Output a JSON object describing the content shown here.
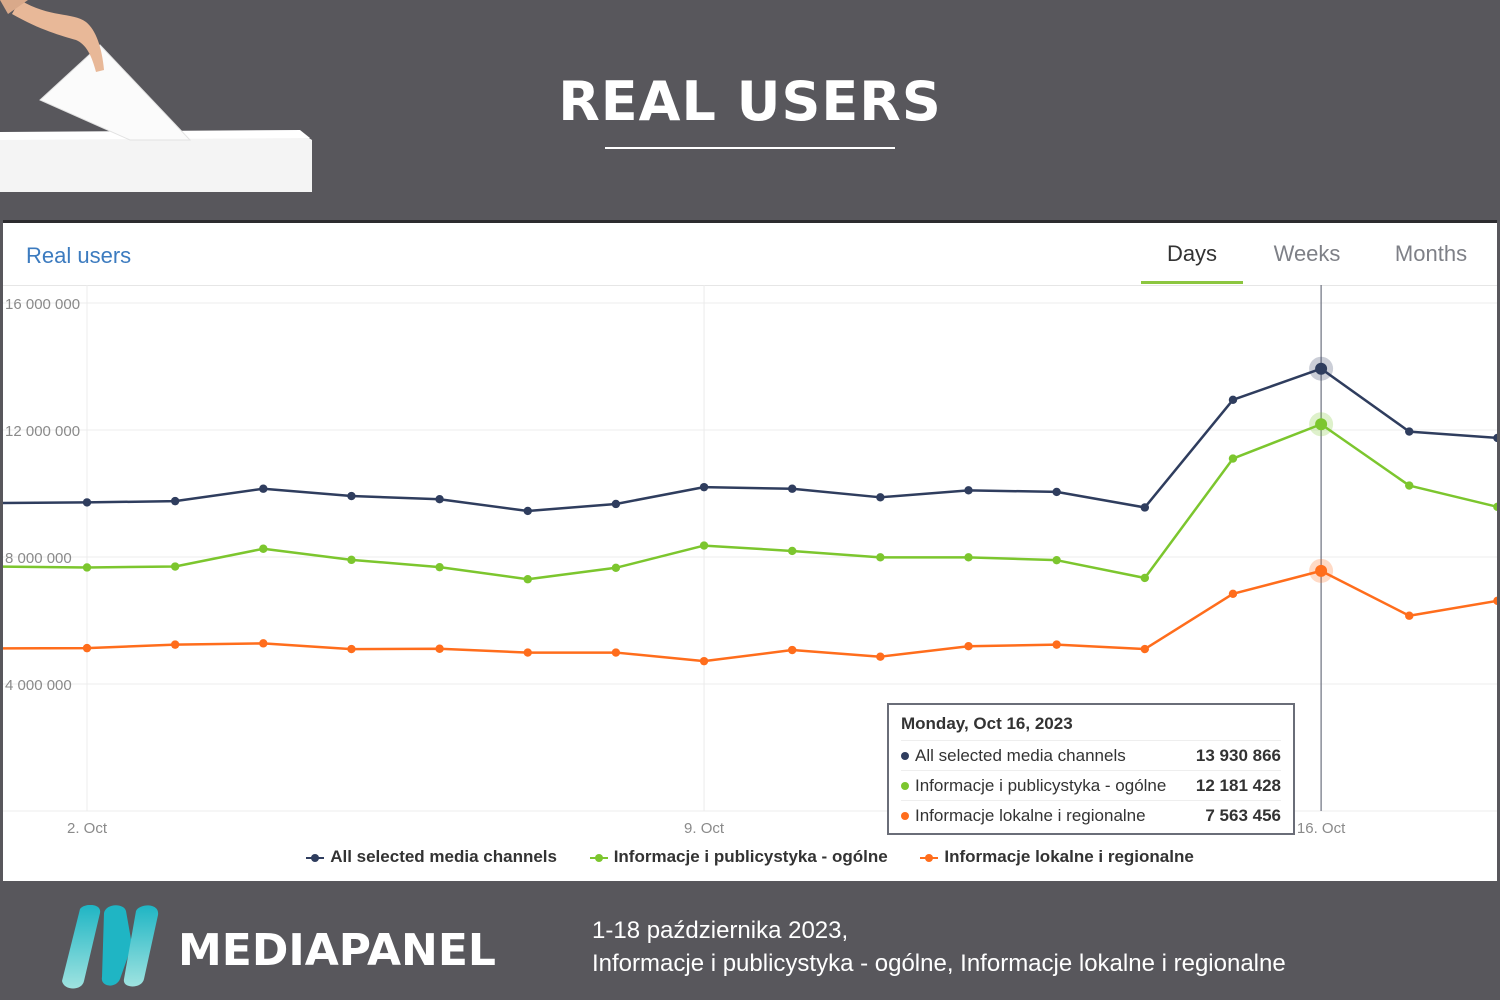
{
  "header": {
    "title": "REAL USERS"
  },
  "panel": {
    "title": "Real users",
    "tabs": [
      {
        "label": "Days",
        "active": true
      },
      {
        "label": "Weeks",
        "active": false
      },
      {
        "label": "Months",
        "active": false
      }
    ]
  },
  "tooltip": {
    "date": "Monday, Oct 16, 2023",
    "rows": [
      {
        "name": "All selected media channels",
        "value": "13 930 866",
        "color": "#2f3d5e"
      },
      {
        "name": "Informacje i publicystyka - ogólne",
        "value": "12 181 428",
        "color": "#7cc62e"
      },
      {
        "name": "Informacje lokalne i regionalne",
        "value": "7 563 456",
        "color": "#ff6d1c"
      }
    ]
  },
  "footer": {
    "brand": "MEDIAPANEL",
    "line1": "1-18 października 2023,",
    "line2": "Informacje i publicystyka - ogólne, Informacje lokalne i regionalne"
  },
  "chart_data": {
    "type": "line",
    "title": "Real users",
    "x": [
      "2023-10-01",
      "2023-10-02",
      "2023-10-03",
      "2023-10-04",
      "2023-10-05",
      "2023-10-06",
      "2023-10-07",
      "2023-10-08",
      "2023-10-09",
      "2023-10-10",
      "2023-10-11",
      "2023-10-12",
      "2023-10-13",
      "2023-10-14",
      "2023-10-15",
      "2023-10-16",
      "2023-10-17",
      "2023-10-18"
    ],
    "x_tick_labels": [
      "2. Oct",
      "9. Oct",
      "16. Oct"
    ],
    "x_tick_dates": [
      "2023-10-02",
      "2023-10-09",
      "2023-10-16"
    ],
    "ylim": [
      0,
      16000000
    ],
    "y_ticks": [
      4000000,
      8000000,
      12000000,
      16000000
    ],
    "y_tick_labels": [
      "4 000 000",
      "8 000 000",
      "12 000 000",
      "16 000 000"
    ],
    "grid": true,
    "legend": "bottom",
    "series": [
      {
        "name": "All selected media channels",
        "color": "#2f3d5e",
        "values": [
          9700000,
          9720000,
          9760000,
          10150000,
          9920000,
          9820000,
          9450000,
          9670000,
          10200000,
          10150000,
          9880000,
          10100000,
          10050000,
          9560000,
          12950000,
          13930866,
          11950000,
          11750000
        ]
      },
      {
        "name": "Informacje i publicystyka - ogólne",
        "color": "#7cc62e",
        "values": [
          7700000,
          7670000,
          7700000,
          8260000,
          7910000,
          7680000,
          7300000,
          7660000,
          8360000,
          8190000,
          7990000,
          7990000,
          7900000,
          7340000,
          11100000,
          12181428,
          10250000,
          9580000
        ]
      },
      {
        "name": "Informacje lokalne i regionalne",
        "color": "#ff6d1c",
        "values": [
          5120000,
          5130000,
          5240000,
          5280000,
          5100000,
          5110000,
          4990000,
          4990000,
          4720000,
          5070000,
          4860000,
          5190000,
          5240000,
          5100000,
          6840000,
          7563456,
          6150000,
          6620000
        ]
      }
    ],
    "highlight_date": "2023-10-16"
  }
}
